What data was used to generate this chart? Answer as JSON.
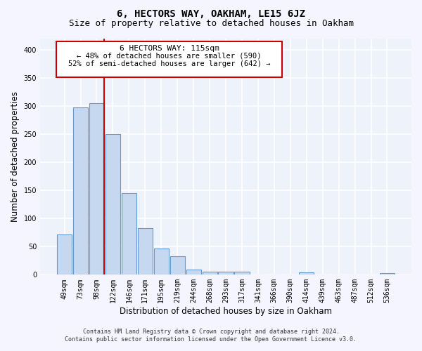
{
  "title": "6, HECTORS WAY, OAKHAM, LE15 6JZ",
  "subtitle": "Size of property relative to detached houses in Oakham",
  "xlabel": "Distribution of detached houses by size in Oakham",
  "ylabel": "Number of detached properties",
  "categories": [
    "49sqm",
    "73sqm",
    "98sqm",
    "122sqm",
    "146sqm",
    "171sqm",
    "195sqm",
    "219sqm",
    "244sqm",
    "268sqm",
    "293sqm",
    "317sqm",
    "341sqm",
    "366sqm",
    "390sqm",
    "414sqm",
    "439sqm",
    "463sqm",
    "487sqm",
    "512sqm",
    "536sqm"
  ],
  "values": [
    72,
    298,
    305,
    250,
    145,
    83,
    46,
    33,
    9,
    6,
    6,
    6,
    1,
    0,
    0,
    4,
    0,
    0,
    0,
    0,
    3
  ],
  "bar_color": "#c5d8f0",
  "bar_edge_color": "#6699cc",
  "vline_color": "#cc0000",
  "annotation_title": "6 HECTORS WAY: 115sqm",
  "annotation_line1": "← 48% of detached houses are smaller (590)",
  "annotation_line2": "52% of semi-detached houses are larger (642) →",
  "annotation_box_color": "#ffffff",
  "annotation_box_edge_color": "#cc0000",
  "footer_line1": "Contains HM Land Registry data © Crown copyright and database right 2024.",
  "footer_line2": "Contains public sector information licensed under the Open Government Licence v3.0.",
  "ylim": [
    0,
    420
  ],
  "yticks": [
    0,
    50,
    100,
    150,
    200,
    250,
    300,
    350,
    400
  ],
  "background_color": "#eef2fb",
  "grid_color": "#ffffff",
  "fig_bg_color": "#f5f5ff",
  "title_fontsize": 10,
  "subtitle_fontsize": 9,
  "axis_label_fontsize": 8.5,
  "tick_fontsize": 7
}
